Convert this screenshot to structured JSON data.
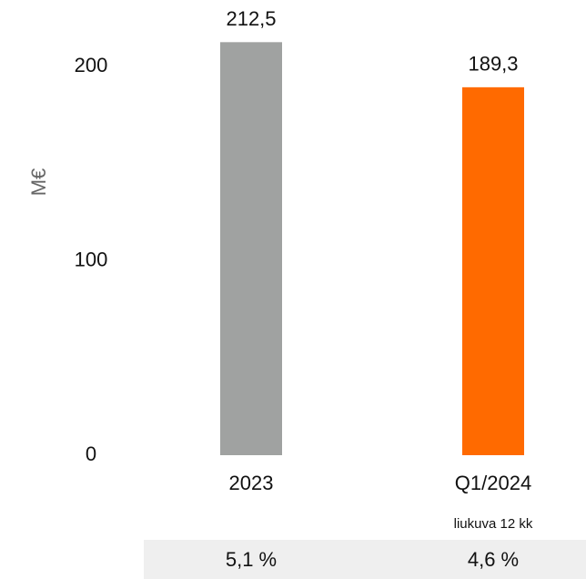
{
  "chart_data": {
    "type": "bar",
    "y_label": "M€",
    "categories": [
      "2023",
      "Q1/2024"
    ],
    "category_notes": [
      null,
      "liukuva 12 kk"
    ],
    "values": [
      212.5,
      189.3
    ],
    "value_labels": [
      "212,5",
      "189,3"
    ],
    "colors": [
      "#a0a2a1",
      "#ff6a00"
    ],
    "ylim": [
      0,
      200
    ],
    "yticks": [
      0,
      100,
      200
    ],
    "grid": false,
    "row_labels": [
      "5,1 %",
      "4,6 %"
    ]
  }
}
